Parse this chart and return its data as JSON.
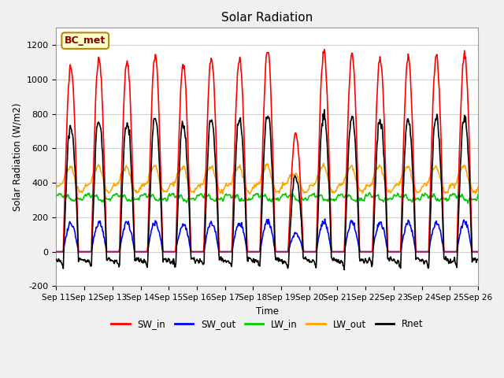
{
  "title": "Solar Radiation",
  "ylabel": "Solar Radiation (W/m2)",
  "xlabel": "Time",
  "ylim": [
    -200,
    1300
  ],
  "yticks": [
    -200,
    0,
    200,
    400,
    600,
    800,
    1000,
    1200
  ],
  "x_tick_labels": [
    "Sep 11",
    "Sep 12",
    "Sep 13",
    "Sep 14",
    "Sep 15",
    "Sep 16",
    "Sep 17",
    "Sep 18",
    "Sep 19",
    "Sep 20",
    "Sep 21",
    "Sep 22",
    "Sep 23",
    "Sep 24",
    "Sep 25",
    "Sep 26"
  ],
  "series": {
    "SW_in": {
      "color": "#ff0000",
      "lw": 1.2
    },
    "SW_out": {
      "color": "#0000ff",
      "lw": 1.2
    },
    "LW_in": {
      "color": "#00cc00",
      "lw": 1.2
    },
    "LW_out": {
      "color": "#ffa500",
      "lw": 1.2
    },
    "Rnet": {
      "color": "#000000",
      "lw": 1.2
    }
  },
  "annotation_text": "BC_met",
  "annotation_color": "#8B0000",
  "annotation_bg": "#ffffcc",
  "annotation_border": "#b8860b",
  "grid_color": "#d0d0d0",
  "plot_bg": "#f0f0f0",
  "axes_bg": "#ffffff",
  "n_days": 15,
  "dt_hours": 0.5,
  "sw_peaks": [
    1100,
    1150,
    1130,
    1160,
    1100,
    1150,
    1150,
    1190,
    700,
    1180,
    1160,
    1150,
    1150,
    1160,
    1175
  ],
  "lw_in_base": 315,
  "lw_out_base": 390,
  "sw_out_ratio": 0.15,
  "night_rnet": -80
}
